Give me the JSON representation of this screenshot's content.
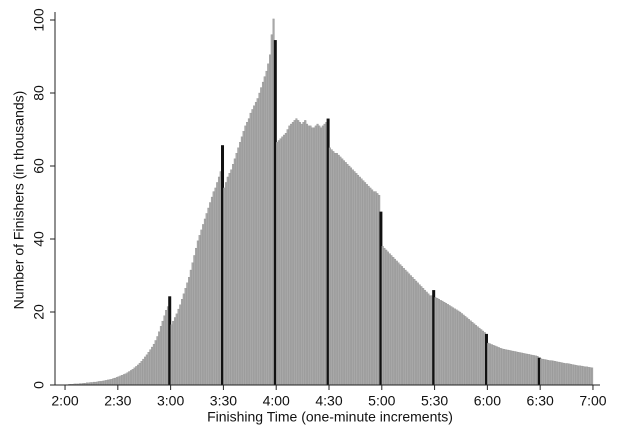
{
  "chart_data": {
    "type": "histogram",
    "x_label": "Finishing Time (one-minute increments)",
    "y_label": "Number of Finishers (in thousands)",
    "color": "#a8a8a8",
    "highlight_color": "#111111",
    "highlight_x": [
      179,
      209,
      239,
      269,
      299,
      329,
      359,
      389
    ],
    "xlim": [
      114.3,
      424
    ],
    "ylim": [
      0,
      100
    ],
    "xticks": [
      {
        "value": 120,
        "label": "2:00"
      },
      {
        "value": 150,
        "label": "2:30"
      },
      {
        "value": 180,
        "label": "3:00"
      },
      {
        "value": 210,
        "label": "3:30"
      },
      {
        "value": 240,
        "label": "4:00"
      },
      {
        "value": 270,
        "label": "4:30"
      },
      {
        "value": 300,
        "label": "5:00"
      },
      {
        "value": 330,
        "label": "5:30"
      },
      {
        "value": 360,
        "label": "6:00"
      },
      {
        "value": 390,
        "label": "6:30"
      },
      {
        "value": 420,
        "label": "7:00"
      }
    ],
    "yticks": [
      0,
      20,
      40,
      60,
      80,
      100
    ],
    "bins": [
      120,
      121,
      122,
      123,
      124,
      125,
      126,
      127,
      128,
      129,
      130,
      131,
      132,
      133,
      134,
      135,
      136,
      137,
      138,
      139,
      140,
      141,
      142,
      143,
      144,
      145,
      146,
      147,
      148,
      149,
      150,
      151,
      152,
      153,
      154,
      155,
      156,
      157,
      158,
      159,
      160,
      161,
      162,
      163,
      164,
      165,
      166,
      167,
      168,
      169,
      170,
      171,
      172,
      173,
      174,
      175,
      176,
      177,
      178,
      179,
      180,
      181,
      182,
      183,
      184,
      185,
      186,
      187,
      188,
      189,
      190,
      191,
      192,
      193,
      194,
      195,
      196,
      197,
      198,
      199,
      200,
      201,
      202,
      203,
      204,
      205,
      206,
      207,
      208,
      209,
      210,
      211,
      212,
      213,
      214,
      215,
      216,
      217,
      218,
      219,
      220,
      221,
      222,
      223,
      224,
      225,
      226,
      227,
      228,
      229,
      230,
      231,
      232,
      233,
      234,
      235,
      236,
      237,
      238,
      239,
      240,
      241,
      242,
      243,
      244,
      245,
      246,
      247,
      248,
      249,
      250,
      251,
      252,
      253,
      254,
      255,
      256,
      257,
      258,
      259,
      260,
      261,
      262,
      263,
      264,
      265,
      266,
      267,
      268,
      269,
      270,
      271,
      272,
      273,
      274,
      275,
      276,
      277,
      278,
      279,
      280,
      281,
      282,
      283,
      284,
      285,
      286,
      287,
      288,
      289,
      290,
      291,
      292,
      293,
      294,
      295,
      296,
      297,
      298,
      299,
      300,
      301,
      302,
      303,
      304,
      305,
      306,
      307,
      308,
      309,
      310,
      311,
      312,
      313,
      314,
      315,
      316,
      317,
      318,
      319,
      320,
      321,
      322,
      323,
      324,
      325,
      326,
      327,
      328,
      329,
      330,
      331,
      332,
      333,
      334,
      335,
      336,
      337,
      338,
      339,
      340,
      341,
      342,
      343,
      344,
      345,
      346,
      347,
      348,
      349,
      350,
      351,
      352,
      353,
      354,
      355,
      356,
      357,
      358,
      359,
      360,
      361,
      362,
      363,
      364,
      365,
      366,
      367,
      368,
      369,
      370,
      371,
      372,
      373,
      374,
      375,
      376,
      377,
      378,
      379,
      380,
      381,
      382,
      383,
      384,
      385,
      386,
      387,
      388,
      389,
      390,
      391,
      392,
      393,
      394,
      395,
      396,
      397,
      398,
      399,
      400,
      401,
      402,
      403,
      404,
      405,
      406,
      407,
      408,
      409,
      410,
      411,
      412,
      413,
      414,
      415,
      416,
      417,
      418,
      419,
      420
    ],
    "values": [
      0.1,
      0.1,
      0.2,
      0.2,
      0.2,
      0.3,
      0.3,
      0.3,
      0.4,
      0.4,
      0.5,
      0.5,
      0.6,
      0.6,
      0.7,
      0.7,
      0.8,
      0.8,
      0.9,
      1.0,
      1.0,
      1.1,
      1.2,
      1.3,
      1.4,
      1.5,
      1.6,
      1.8,
      1.9,
      2.1,
      2.3,
      2.5,
      2.7,
      2.9,
      3.1,
      3.4,
      3.7,
      4.0,
      4.3,
      4.7,
      5.1,
      5.5,
      6.0,
      6.5,
      7.1,
      7.7,
      8.3,
      9.0,
      9.7,
      10.4,
      11.2,
      12.2,
      13.3,
      14.6,
      16.1,
      17.5,
      19.0,
      20.5,
      21.5,
      24.3,
      16.5,
      17.5,
      18.5,
      19.5,
      20.8,
      22.0,
      23.5,
      25.0,
      26.5,
      28.0,
      29.5,
      31.5,
      33.5,
      35.5,
      37.5,
      39.5,
      41.0,
      42.5,
      44.0,
      45.5,
      47.0,
      48.5,
      50.0,
      51.5,
      53.0,
      54.0,
      55.5,
      57.0,
      58.5,
      65.7,
      54.0,
      55.5,
      57.0,
      58.0,
      59.0,
      60.5,
      62.0,
      63.5,
      65.0,
      66.5,
      68.0,
      69.5,
      71.0,
      72.0,
      73.0,
      74.5,
      75.5,
      76.5,
      77.5,
      78.5,
      80.0,
      81.5,
      83.0,
      84.5,
      86.0,
      88.0,
      90.5,
      96.0,
      100.3,
      94.5,
      66.5,
      67.0,
      67.5,
      68.0,
      68.5,
      69.0,
      70.0,
      71.0,
      71.5,
      72.0,
      72.5,
      73.0,
      72.5,
      72.0,
      71.5,
      72.0,
      72.5,
      71.5,
      71.0,
      71.0,
      70.5,
      70.5,
      71.0,
      71.5,
      71.0,
      70.5,
      71.0,
      71.5,
      72.0,
      73.0,
      65.0,
      64.5,
      64.0,
      63.5,
      63.5,
      63.0,
      62.5,
      62.0,
      61.5,
      61.0,
      60.5,
      60.0,
      59.5,
      59.0,
      58.5,
      58.0,
      57.5,
      57.0,
      56.5,
      56.0,
      55.5,
      55.0,
      54.5,
      54.0,
      53.5,
      53.0,
      53.0,
      52.5,
      52.0,
      47.5,
      38.0,
      37.5,
      37.0,
      36.5,
      36.0,
      35.5,
      35.0,
      34.5,
      34.0,
      33.5,
      33.0,
      32.5,
      32.0,
      31.5,
      31.0,
      30.5,
      30.0,
      29.5,
      29.0,
      28.5,
      28.0,
      27.5,
      27.0,
      26.5,
      26.0,
      25.5,
      25.0,
      24.5,
      24.5,
      26.0,
      24.0,
      23.8,
      23.5,
      23.2,
      23.0,
      22.7,
      22.4,
      22.1,
      21.8,
      21.5,
      21.2,
      20.9,
      20.6,
      20.3,
      20.0,
      19.6,
      19.2,
      18.8,
      18.4,
      18.0,
      17.6,
      17.2,
      16.8,
      16.4,
      16.0,
      15.6,
      15.2,
      14.8,
      14.4,
      14.0,
      11.5,
      11.3,
      11.1,
      10.9,
      10.7,
      10.5,
      10.3,
      10.1,
      9.9,
      9.8,
      9.7,
      9.6,
      9.5,
      9.4,
      9.3,
      9.2,
      9.1,
      9.0,
      8.9,
      8.8,
      8.7,
      8.6,
      8.5,
      8.4,
      8.3,
      8.2,
      8.1,
      8.0,
      7.9,
      7.5,
      7.2,
      7.1,
      7.0,
      6.9,
      6.8,
      6.7,
      6.7,
      6.6,
      6.5,
      6.4,
      6.3,
      6.2,
      6.1,
      6.0,
      5.9,
      5.9,
      5.8,
      5.7,
      5.6,
      5.5,
      5.4,
      5.3,
      5.3,
      5.2,
      5.1,
      5.0,
      5.0,
      4.9,
      4.8,
      4.7
    ]
  }
}
